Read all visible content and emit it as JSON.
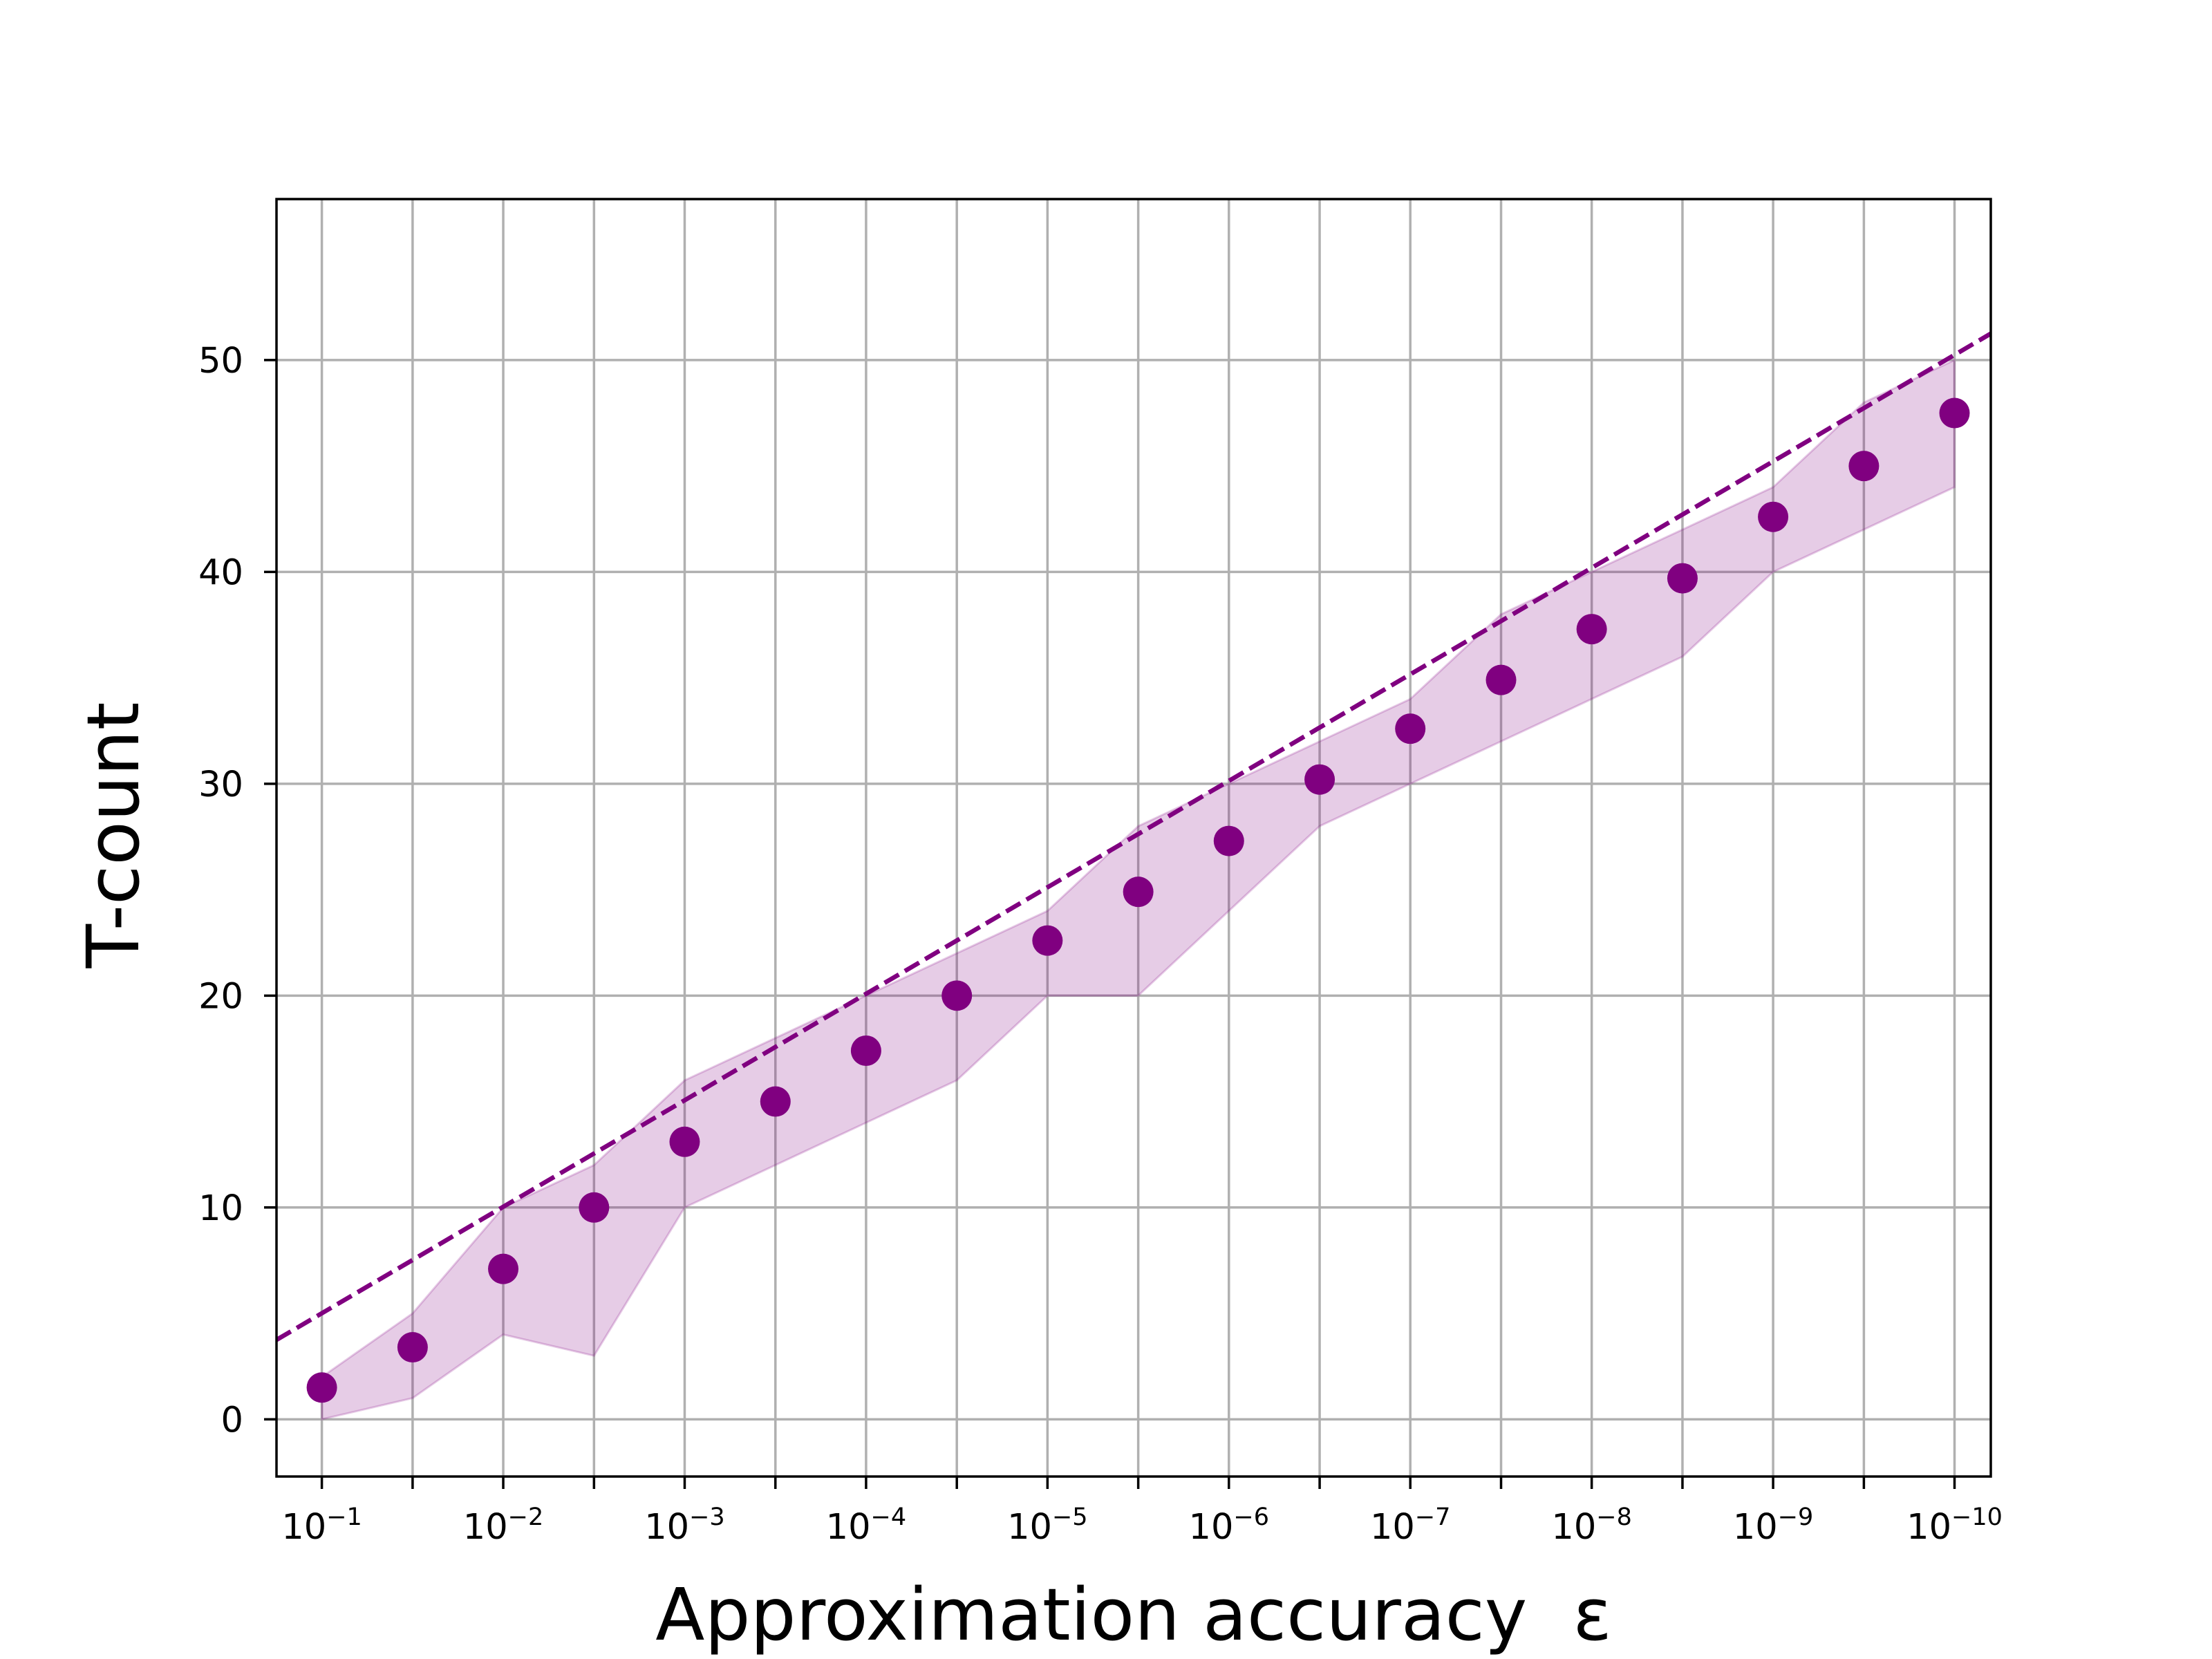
{
  "chart_data": {
    "type": "scatter",
    "title": "",
    "xlabel": "Approximation accuracy  ε",
    "ylabel": "T-count",
    "x_scale": "log",
    "x_direction": "decreasing epsilon to the right",
    "x_tick_labels": [
      {
        "base": "10",
        "exp": "−1"
      },
      {
        "base": "10",
        "exp": "−2"
      },
      {
        "base": "10",
        "exp": "−3"
      },
      {
        "base": "10",
        "exp": "−4"
      },
      {
        "base": "10",
        "exp": "−5"
      },
      {
        "base": "10",
        "exp": "−6"
      },
      {
        "base": "10",
        "exp": "−7"
      },
      {
        "base": "10",
        "exp": "−8"
      },
      {
        "base": "10",
        "exp": "−9"
      },
      {
        "base": "10",
        "exp": "−10"
      }
    ],
    "y_ticks": [
      0,
      10,
      20,
      30,
      40,
      50
    ],
    "y_tick_labels": [
      "0",
      "10",
      "20",
      "30",
      "40",
      "50"
    ],
    "xlim": [
      0.1778,
      6.31e-11
    ],
    "ylim": [
      -2.7,
      57.6
    ],
    "grid": true,
    "colors": {
      "series": "#800080",
      "band": "#800080",
      "grid": "#b0b0b0"
    },
    "series": [
      {
        "kind": "points",
        "x": [
          0.1,
          0.0316,
          0.01,
          0.00316,
          0.001,
          0.000316,
          0.0001,
          3.16e-05,
          1e-05,
          3.16e-06,
          1e-06,
          3.16e-07,
          1e-07,
          3.16e-08,
          1e-08,
          3.16e-09,
          1e-09,
          3.16e-10,
          1e-10
        ],
        "y": [
          1.5,
          3.4,
          7.1,
          10.0,
          13.1,
          15.0,
          17.4,
          20.0,
          22.6,
          24.9,
          27.3,
          30.2,
          32.6,
          34.9,
          37.3,
          39.7,
          42.6,
          45.0,
          47.5
        ]
      },
      {
        "kind": "band",
        "x": [
          0.1,
          0.0316,
          0.01,
          0.00316,
          0.001,
          0.000316,
          0.0001,
          3.16e-05,
          1e-05,
          3.16e-06,
          1e-06,
          3.16e-07,
          1e-07,
          3.16e-08,
          1e-08,
          3.16e-09,
          1e-09,
          3.16e-10,
          1e-10
        ],
        "lower": [
          0,
          1,
          4,
          3,
          10,
          12,
          14,
          16,
          20,
          20,
          24,
          28,
          30,
          32,
          34,
          36,
          40,
          42,
          44
        ],
        "upper": [
          2,
          5,
          10,
          12,
          16,
          18,
          20,
          22,
          24,
          28,
          30,
          32,
          34,
          38,
          40,
          42,
          44,
          48,
          50
        ]
      },
      {
        "kind": "reference_line",
        "style": "dashed",
        "x": [
          0.1778,
          6.31e-11
        ],
        "y": [
          3.75,
          51.25
        ]
      }
    ]
  }
}
